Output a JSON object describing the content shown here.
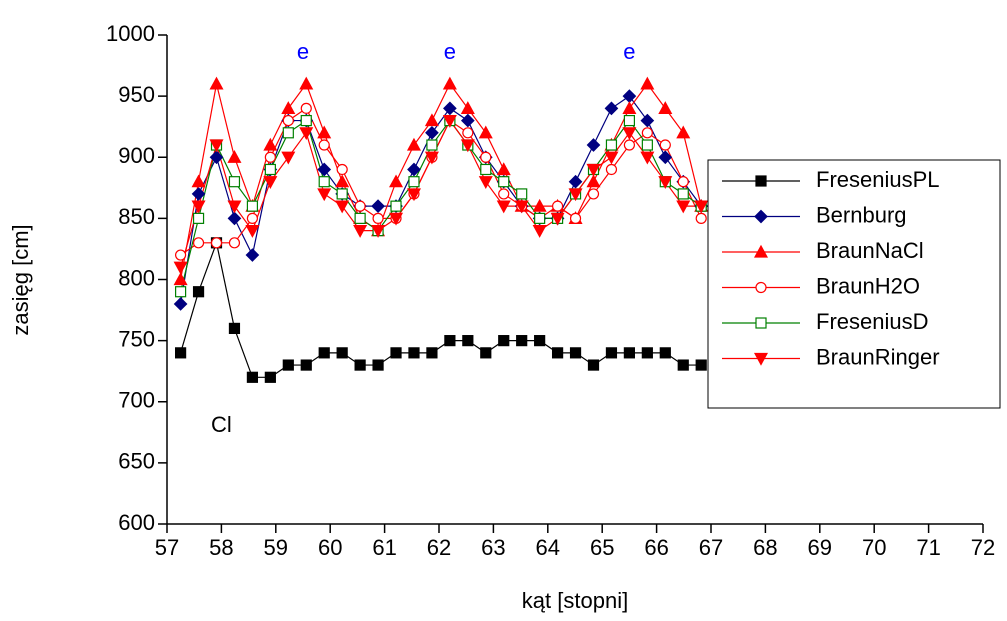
{
  "chart_data": {
    "type": "line",
    "x_label": "kąt [stopni]",
    "y_label": "zasięg [cm]",
    "xlim": [
      57,
      72
    ],
    "xticks": [
      57,
      58,
      59,
      60,
      61,
      62,
      63,
      64,
      65,
      66,
      67,
      68,
      69,
      70,
      71,
      72
    ],
    "ylim": [
      600,
      1000
    ],
    "yticks": [
      600,
      650,
      700,
      750,
      800,
      850,
      900,
      950,
      1000
    ],
    "x": [
      57.25,
      57.58,
      57.91,
      58.24,
      58.57,
      58.9,
      59.23,
      59.56,
      59.89,
      60.22,
      60.55,
      60.88,
      61.21,
      61.54,
      61.87,
      62.2,
      62.53,
      62.86,
      63.19,
      63.52,
      63.85,
      64.18,
      64.51,
      64.84,
      65.17,
      65.5,
      65.83,
      66.16,
      66.49,
      66.82
    ],
    "series": [
      {
        "name": "FreseniusPL",
        "color": "#000000",
        "marker": "square",
        "filled": true,
        "values": [
          740,
          790,
          830,
          760,
          720,
          720,
          730,
          730,
          740,
          740,
          730,
          730,
          740,
          740,
          740,
          750,
          750,
          740,
          750,
          750,
          750,
          740,
          740,
          730,
          740,
          740,
          740,
          740,
          730,
          730
        ]
      },
      {
        "name": "Bernburg",
        "color": "#000080",
        "marker": "diamond",
        "filled": true,
        "values": [
          780,
          870,
          900,
          850,
          820,
          890,
          930,
          930,
          890,
          870,
          860,
          860,
          860,
          890,
          920,
          940,
          930,
          900,
          880,
          860,
          850,
          850,
          880,
          910,
          940,
          950,
          930,
          900,
          880,
          860
        ]
      },
      {
        "name": "BraunNaCl",
        "color": "#ff0000",
        "marker": "triangle-up",
        "filled": true,
        "values": [
          800,
          880,
          960,
          900,
          860,
          910,
          940,
          960,
          920,
          880,
          850,
          840,
          880,
          910,
          930,
          960,
          940,
          920,
          890,
          860,
          860,
          860,
          850,
          880,
          910,
          940,
          960,
          940,
          920,
          860
        ]
      },
      {
        "name": "BraunH2O",
        "color": "#ff0000",
        "marker": "circle",
        "filled": false,
        "values": [
          820,
          830,
          830,
          830,
          850,
          900,
          930,
          940,
          910,
          890,
          860,
          850,
          850,
          870,
          900,
          930,
          920,
          900,
          870,
          860,
          850,
          860,
          850,
          870,
          890,
          910,
          920,
          910,
          880,
          850
        ]
      },
      {
        "name": "FreseniusD",
        "color": "#008000",
        "marker": "square",
        "filled": false,
        "values": [
          790,
          850,
          910,
          880,
          860,
          890,
          920,
          930,
          880,
          870,
          850,
          840,
          860,
          880,
          910,
          930,
          910,
          890,
          880,
          870,
          850,
          850,
          870,
          890,
          910,
          930,
          910,
          880,
          870,
          860
        ]
      },
      {
        "name": "BraunRinger",
        "color": "#ff0000",
        "marker": "triangle-down",
        "filled": true,
        "values": [
          810,
          860,
          910,
          860,
          840,
          880,
          900,
          920,
          870,
          860,
          840,
          840,
          850,
          870,
          900,
          930,
          910,
          880,
          860,
          860,
          840,
          850,
          870,
          890,
          900,
          920,
          900,
          880,
          860,
          860
        ]
      }
    ],
    "annotations": [
      {
        "text": "e",
        "x": 59.5,
        "y": 985,
        "color": "#0000ff"
      },
      {
        "text": "e",
        "x": 62.2,
        "y": 985,
        "color": "#0000ff"
      },
      {
        "text": "e",
        "x": 65.5,
        "y": 985,
        "color": "#0000ff"
      },
      {
        "text": "Cl",
        "x": 58.0,
        "y": 680,
        "color": "#000000"
      }
    ],
    "legend": "right"
  }
}
